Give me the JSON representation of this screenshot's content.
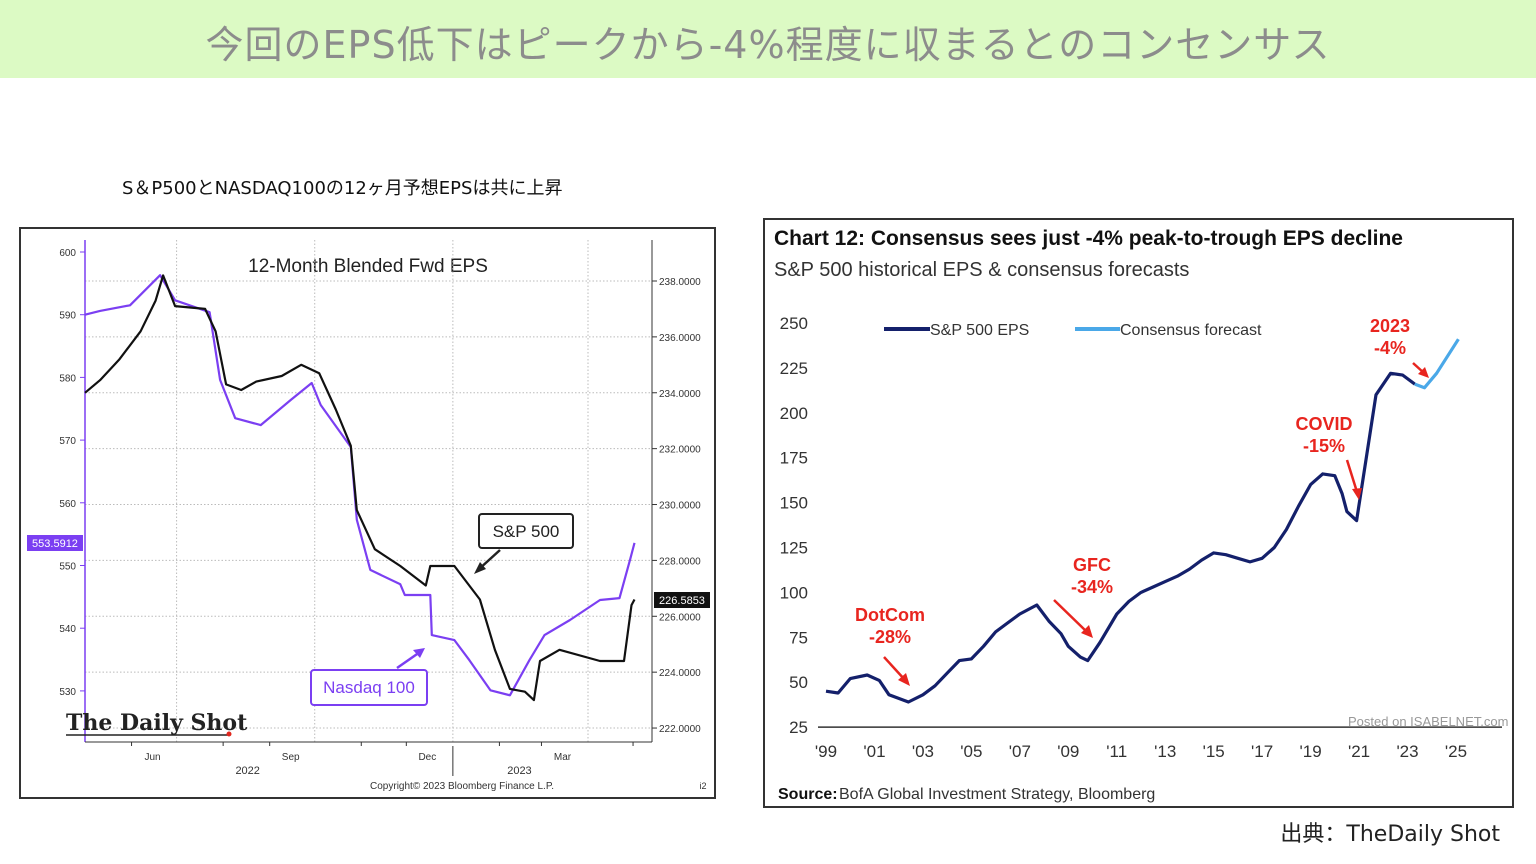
{
  "header": {
    "title": "今回のEPS低下はピークから-4%程度に収まるとのコンセンサス"
  },
  "left_caption": "S＆P500とNASDAQ100の12ヶ月予想EPSは共に上昇",
  "credit": "出典：TheDaily Shot",
  "colors": {
    "header_bg": "#dcfac4",
    "nasdaq": "#7b3ff2",
    "sp500": "#111111",
    "eps_hist": "#14206b",
    "forecast": "#4aa8e8",
    "annotation": "#e8251f"
  },
  "chart_data": [
    {
      "type": "line",
      "title": "12-Month Blended Fwd EPS",
      "left_axis": {
        "ylim": [
          528,
          602
        ],
        "ticks": [
          "600",
          "590",
          "580",
          "570",
          "560",
          "550",
          "540",
          "530"
        ]
      },
      "right_axis": {
        "ylim": [
          221.5,
          239.0
        ],
        "ticks": [
          "238.0000",
          "236.0000",
          "234.0000",
          "232.0000",
          "230.0000",
          "228.0000",
          "226.0000",
          "224.0000",
          "222.0000"
        ]
      },
      "x_ticks": [
        {
          "label": "Jun",
          "date": "2022-06-15"
        },
        {
          "label": "Sep",
          "date": "2022-09-15"
        },
        {
          "label": "Dec",
          "date": "2022-12-15"
        },
        {
          "label": "Mar",
          "date": "2023-03-15"
        }
      ],
      "year_labels": [
        {
          "label": "2022",
          "date": "2022-09-01"
        },
        {
          "label": "2023",
          "date": "2023-03-01"
        }
      ],
      "grid": true,
      "series": [
        {
          "name": "Nasdaq 100",
          "axis": "left",
          "last_value_label": "553.5912",
          "points": [
            [
              "2022-05-01",
              590
            ],
            [
              "2022-05-11",
              590.6
            ],
            [
              "2022-05-31",
              591.5
            ],
            [
              "2022-06-20",
              596.3
            ],
            [
              "2022-06-30",
              592.3
            ],
            [
              "2022-07-23",
              590.4
            ],
            [
              "2022-07-30",
              579.6
            ],
            [
              "2022-08-09",
              573.5
            ],
            [
              "2022-08-26",
              572.4
            ],
            [
              "2022-09-15",
              576.4
            ],
            [
              "2022-09-29",
              579.1
            ],
            [
              "2022-10-05",
              575.6
            ],
            [
              "2022-10-25",
              568.9
            ],
            [
              "2022-10-29",
              557.3
            ],
            [
              "2022-11-07",
              549.3
            ],
            [
              "2022-11-27",
              547
            ],
            [
              "2022-11-30",
              545.3
            ],
            [
              "2022-12-17",
              545.3
            ],
            [
              "2022-12-18",
              538.9
            ],
            [
              "2023-01-02",
              538.1
            ],
            [
              "2023-01-12",
              534.9
            ],
            [
              "2023-01-26",
              530.1
            ],
            [
              "2023-02-08",
              529.3
            ],
            [
              "2023-02-21",
              534.9
            ],
            [
              "2023-03-03",
              538.9
            ],
            [
              "2023-03-20",
              541.3
            ],
            [
              "2023-04-09",
              544.5
            ],
            [
              "2023-04-22",
              544.8
            ],
            [
              "2023-04-29",
              550.9
            ],
            [
              "2023-05-02",
              553.6
            ]
          ]
        },
        {
          "name": "S&P 500",
          "axis": "right",
          "last_value_label": "226.5853",
          "points": [
            [
              "2022-05-01",
              234.0
            ],
            [
              "2022-05-11",
              234.45
            ],
            [
              "2022-05-24",
              235.2
            ],
            [
              "2022-06-07",
              236.2
            ],
            [
              "2022-06-17",
              237.3
            ],
            [
              "2022-06-22",
              238.2
            ],
            [
              "2022-06-30",
              237.1
            ],
            [
              "2022-07-20",
              237.0
            ],
            [
              "2022-07-27",
              236.2
            ],
            [
              "2022-08-03",
              234.3
            ],
            [
              "2022-08-13",
              234.1
            ],
            [
              "2022-08-23",
              234.4
            ],
            [
              "2022-09-09",
              234.6
            ],
            [
              "2022-09-22",
              235.0
            ],
            [
              "2022-10-04",
              234.7
            ],
            [
              "2022-10-15",
              233.4
            ],
            [
              "2022-10-25",
              232.1
            ],
            [
              "2022-10-29",
              229.8
            ],
            [
              "2022-11-10",
              228.4
            ],
            [
              "2022-11-27",
              227.8
            ],
            [
              "2022-12-14",
              227.1
            ],
            [
              "2022-12-17",
              227.8
            ],
            [
              "2023-01-02",
              227.8
            ],
            [
              "2023-01-19",
              226.6
            ],
            [
              "2023-01-29",
              224.8
            ],
            [
              "2023-02-08",
              223.4
            ],
            [
              "2023-02-18",
              223.3
            ],
            [
              "2023-02-24",
              223.0
            ],
            [
              "2023-02-28",
              224.4
            ],
            [
              "2023-03-13",
              224.8
            ],
            [
              "2023-04-09",
              224.4
            ],
            [
              "2023-04-25",
              224.4
            ],
            [
              "2023-04-30",
              226.4
            ],
            [
              "2023-05-02",
              226.6
            ]
          ]
        }
      ],
      "callouts": [
        "S&P 500",
        "Nasdaq 100"
      ],
      "logo": "The Daily Shot",
      "copyright": "Copyright© 2023 Bloomberg Finance L.P.",
      "corner_mark": "i2"
    },
    {
      "type": "line",
      "title": "Chart 12: Consensus sees just -4% peak-to-trough EPS decline",
      "subtitle": "S&P 500 historical EPS & consensus forecasts",
      "ylim": [
        25,
        250
      ],
      "y_ticks": [
        "250",
        "225",
        "200",
        "175",
        "150",
        "125",
        "100",
        "75",
        "50",
        "25"
      ],
      "x_ticks": [
        "'99",
        "'01",
        "'03",
        "'05",
        "'07",
        "'09",
        "'11",
        "'13",
        "'15",
        "'17",
        "'19",
        "'21",
        "'23",
        "'25"
      ],
      "xlim": [
        1999,
        2025
      ],
      "legend": "top-left",
      "series": [
        {
          "name": "S&P 500 EPS",
          "points": [
            [
              1999,
              45
            ],
            [
              1999.5,
              44
            ],
            [
              2000,
              52
            ],
            [
              2000.7,
              54
            ],
            [
              2001.2,
              51
            ],
            [
              2001.6,
              43
            ],
            [
              2002,
              41
            ],
            [
              2002.4,
              39
            ],
            [
              2003,
              43
            ],
            [
              2003.5,
              48
            ],
            [
              2004,
              55
            ],
            [
              2004.5,
              62
            ],
            [
              2005,
              63
            ],
            [
              2005.5,
              70
            ],
            [
              2006,
              78
            ],
            [
              2006.5,
              83
            ],
            [
              2007,
              88
            ],
            [
              2007.7,
              93
            ],
            [
              2008.2,
              84
            ],
            [
              2008.7,
              77
            ],
            [
              2009,
              70
            ],
            [
              2009.5,
              64
            ],
            [
              2009.8,
              62
            ],
            [
              2010.3,
              72
            ],
            [
              2011,
              88
            ],
            [
              2011.5,
              95
            ],
            [
              2012,
              100
            ],
            [
              2012.5,
              103
            ],
            [
              2013,
              106
            ],
            [
              2013.5,
              109
            ],
            [
              2014,
              113
            ],
            [
              2014.5,
              118
            ],
            [
              2015,
              122
            ],
            [
              2015.5,
              121
            ],
            [
              2016,
              119
            ],
            [
              2016.5,
              117
            ],
            [
              2017,
              119
            ],
            [
              2017.5,
              125
            ],
            [
              2018,
              135
            ],
            [
              2018.5,
              148
            ],
            [
              2019,
              160
            ],
            [
              2019.5,
              166
            ],
            [
              2020,
              165
            ],
            [
              2020.3,
              155
            ],
            [
              2020.5,
              145
            ],
            [
              2020.9,
              140
            ],
            [
              2021.3,
              175
            ],
            [
              2021.7,
              210
            ],
            [
              2022.3,
              222
            ],
            [
              2022.8,
              221
            ],
            [
              2023.3,
              216
            ]
          ]
        },
        {
          "name": "Consensus forecast",
          "points": [
            [
              2023.3,
              216
            ],
            [
              2023.7,
              214
            ],
            [
              2024.2,
              222
            ],
            [
              2025.1,
              241
            ]
          ]
        }
      ],
      "annotations": [
        {
          "label": "DotCom",
          "value": "-28%"
        },
        {
          "label": "GFC",
          "value": "-34%"
        },
        {
          "label": "COVID",
          "value": "-15%"
        },
        {
          "label": "2023",
          "value": "-4%"
        }
      ],
      "watermark": "Posted on ISABELNET.com",
      "source_label": "Source:",
      "source": "BofA Global Investment Strategy, Bloomberg"
    }
  ]
}
